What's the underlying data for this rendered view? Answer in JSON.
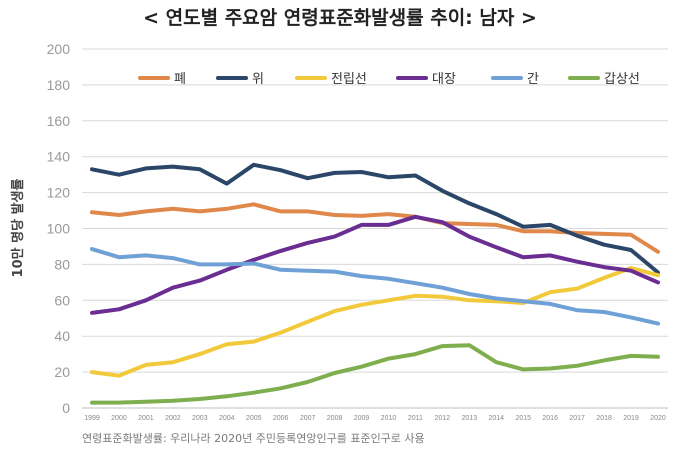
{
  "chart_data": {
    "type": "line",
    "title": "< 연도별 주요암 연령표준화발생률 추이: 남자 >",
    "ylabel": "10만 명당 발생률",
    "xlabel": "",
    "ylim": [
      0,
      200
    ],
    "yticks": [
      0,
      20,
      40,
      60,
      80,
      100,
      120,
      140,
      160,
      180,
      200
    ],
    "grid": true,
    "legend_position": "top",
    "note": "연령표준화발생률: 우리나라 2020년 주민등록연앙인구를 표준인구로 사용",
    "x": [
      "1999",
      "2000",
      "2001",
      "2002",
      "2003",
      "2004",
      "2005",
      "2006",
      "2007",
      "2008",
      "2009",
      "2010",
      "2011",
      "2012",
      "2013",
      "2014",
      "2015",
      "2016",
      "2017",
      "2018",
      "2019",
      "2020"
    ],
    "series": [
      {
        "name": "폐",
        "color": "#E0884A",
        "values": [
          109,
          107.5,
          109.5,
          111,
          109.5,
          111,
          113.5,
          109.5,
          109.5,
          107.5,
          107,
          108,
          106.5,
          103,
          102.5,
          102,
          98.5,
          98.5,
          97.5,
          97,
          96.5,
          87
        ]
      },
      {
        "name": "위",
        "color": "#2B4668",
        "values": [
          133,
          130,
          133.5,
          134.5,
          133,
          125,
          135.5,
          132.5,
          128,
          131,
          131.5,
          128.5,
          129.5,
          121,
          114,
          108,
          101,
          102,
          96,
          91,
          88,
          75.5
        ]
      },
      {
        "name": "전립선",
        "color": "#F1C93B",
        "values": [
          20,
          18,
          24,
          25.5,
          30,
          35.5,
          37,
          42,
          48,
          54,
          57.5,
          60,
          62.5,
          62,
          60,
          59.5,
          58.5,
          64.5,
          66.5,
          72.5,
          78,
          74
        ]
      },
      {
        "name": "대장",
        "color": "#6A2D91",
        "values": [
          53,
          55,
          60,
          67,
          71,
          77,
          82.5,
          87.5,
          92,
          95.5,
          102,
          102,
          106.5,
          103.5,
          95.5,
          89.5,
          84,
          85,
          81.5,
          78.5,
          76.5,
          70
        ]
      },
      {
        "name": "간",
        "color": "#6FA1D6",
        "values": [
          88.5,
          84,
          85,
          83.5,
          80,
          80,
          80.5,
          77,
          76.5,
          76,
          73.5,
          72,
          69.5,
          67,
          63.5,
          61,
          59.5,
          58,
          54.5,
          53.5,
          50.5,
          47
        ]
      },
      {
        "name": "갑상선",
        "color": "#7EAE4E",
        "values": [
          3,
          3,
          3.5,
          4,
          5,
          6.5,
          8.5,
          11,
          14.5,
          19.5,
          23,
          27.5,
          30,
          34.5,
          35,
          25.5,
          21.5,
          22,
          23.5,
          26.5,
          29,
          28.5
        ]
      }
    ]
  }
}
